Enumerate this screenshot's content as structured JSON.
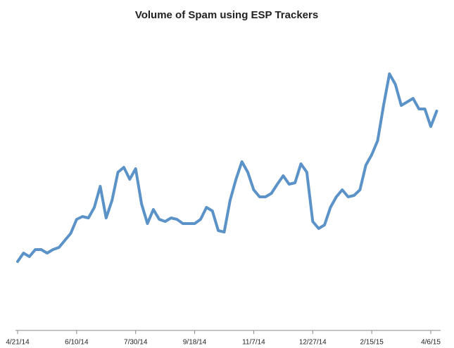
{
  "chart_data": {
    "type": "line",
    "title": "Volume of Spam using ESP Trackers",
    "categories": [
      "4/21/14",
      null,
      null,
      null,
      null,
      null,
      null,
      null,
      null,
      null,
      "6/10/14",
      null,
      null,
      null,
      null,
      null,
      null,
      null,
      null,
      null,
      "7/30/14",
      null,
      null,
      null,
      null,
      null,
      null,
      null,
      null,
      null,
      "9/18/14",
      null,
      null,
      null,
      null,
      null,
      null,
      null,
      null,
      null,
      "11/7/14",
      null,
      null,
      null,
      null,
      null,
      null,
      null,
      null,
      null,
      "12/27/14",
      null,
      null,
      null,
      null,
      null,
      null,
      null,
      null,
      null,
      "2/15/15",
      null,
      null,
      null,
      null,
      null,
      null,
      null,
      null,
      null,
      "4/6/15",
      null
    ],
    "series": [
      {
        "color": "#5b93c9",
        "values": [
          98,
          110,
          105,
          115,
          115,
          110,
          115,
          118,
          128,
          138,
          158,
          162,
          160,
          175,
          205,
          160,
          185,
          225,
          232,
          215,
          230,
          180,
          152,
          172,
          158,
          155,
          160,
          158,
          152,
          152,
          152,
          158,
          175,
          170,
          142,
          140,
          185,
          215,
          240,
          225,
          200,
          190,
          190,
          195,
          208,
          220,
          208,
          210,
          237,
          225,
          155,
          145,
          150,
          175,
          190,
          200,
          190,
          192,
          200,
          235,
          250,
          270,
          320,
          365,
          350,
          320,
          325,
          330,
          315,
          315,
          290,
          312
        ]
      }
    ],
    "ylim": [
      0,
      430
    ]
  }
}
